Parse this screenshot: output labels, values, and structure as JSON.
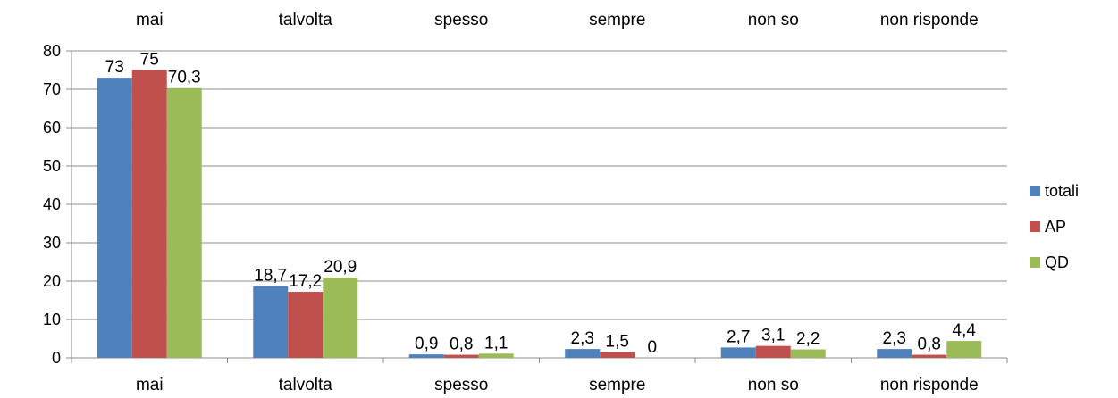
{
  "chart_data": {
    "type": "bar",
    "categories": [
      "mai",
      "talvolta",
      "spesso",
      "sempre",
      "non so",
      "non risponde"
    ],
    "top_categories": [
      "mai",
      "talvolta",
      "spesso",
      "sempre",
      "non so",
      "non risponde"
    ],
    "series": [
      {
        "name": "totali",
        "color": "#4F81BD",
        "values": [
          73,
          18.7,
          0.9,
          2.3,
          2.7,
          2.3
        ],
        "labels": [
          "73",
          "18,7",
          "0,9",
          "2,3",
          "2,7",
          "2,3"
        ]
      },
      {
        "name": "AP",
        "color": "#C0504D",
        "values": [
          75,
          17.2,
          0.8,
          1.5,
          3.1,
          0.8
        ],
        "labels": [
          "75",
          "17,2",
          "0,8",
          "1,5",
          "3,1",
          "0,8"
        ]
      },
      {
        "name": "QD",
        "color": "#9BBB59",
        "values": [
          70.3,
          20.9,
          1.1,
          0,
          2.2,
          4.4
        ],
        "labels": [
          "70,3",
          "20,9",
          "1,1",
          "0",
          "2,2",
          "4,4"
        ]
      }
    ],
    "y_ticks": [
      "0",
      "10",
      "20",
      "30",
      "40",
      "50",
      "60",
      "70",
      "80"
    ],
    "ylim": [
      0,
      80
    ],
    "grid": true,
    "legend_position": "right",
    "title": "",
    "xlabel": "",
    "ylabel": ""
  }
}
